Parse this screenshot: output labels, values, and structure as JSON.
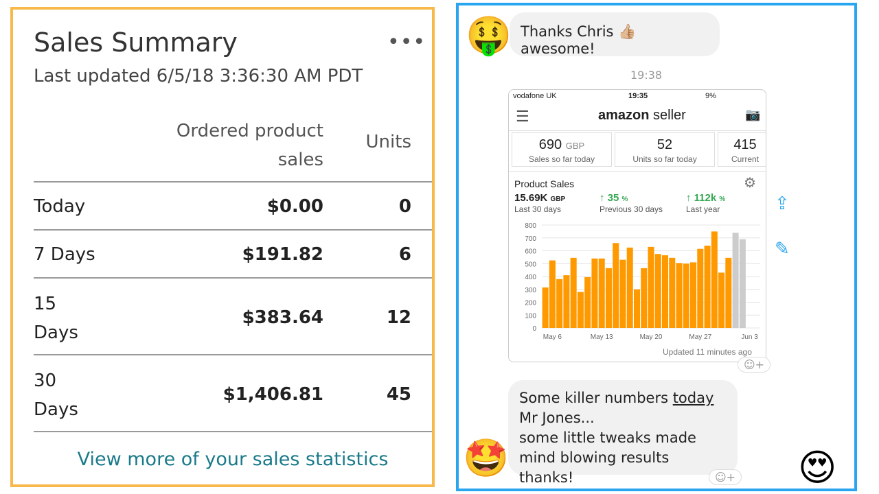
{
  "sales_summary": {
    "title": "Sales Summary",
    "more": "•••",
    "last_updated": "Last updated 6/5/18 3:36:30 AM PDT",
    "col_sales": "Ordered product sales",
    "col_units": "Units",
    "rows": [
      {
        "label": "Today",
        "sales": "$0.00",
        "units": "0"
      },
      {
        "label": "7 Days",
        "sales": "$191.82",
        "units": "6"
      },
      {
        "label": "15 Days",
        "sales": "$383.64",
        "units": "12"
      },
      {
        "label": "30 Days",
        "sales": "$1,406.81",
        "units": "45"
      }
    ],
    "link": "View more of your sales statistics"
  },
  "chat": {
    "message1": "Thanks Chris 👍🏼 awesome!",
    "time": "19:38",
    "message2_a": "Some killer numbers ",
    "message2_u": "today",
    "message2_b": " Mr Jones...",
    "message2_c": "some little tweaks made mind blowing results thanks!",
    "react": "☺+",
    "emoji_sender1": "🤑",
    "emoji_sender2": "🤩",
    "emoji_reader": "😍"
  },
  "phone": {
    "carrier": "vodafone UK",
    "clock": "19:35",
    "battery": "9%",
    "brand_a": "amazon",
    "brand_b": " seller",
    "tiles": [
      {
        "value": "690",
        "unit": "GBP",
        "label": "Sales so far today"
      },
      {
        "value": "52",
        "unit": "",
        "label": "Units so far today"
      },
      {
        "value": "415",
        "unit": "",
        "label": "Current"
      }
    ],
    "product_sales_title": "Product Sales",
    "metrics": [
      {
        "value": "15.69K",
        "unit": "GBP",
        "label": "Last 30 days"
      },
      {
        "value": "↑ 35",
        "unit": "%",
        "label": "Previous 30 days"
      },
      {
        "value": "↑ 112k",
        "unit": "%",
        "label": "Last year"
      }
    ],
    "updated": "Updated 11 minutes ago"
  },
  "chart_data": {
    "type": "bar",
    "categories": [
      "May 5",
      "May 6",
      "May 7",
      "May 8",
      "May 9",
      "May 10",
      "May 11",
      "May 12",
      "May 13",
      "May 14",
      "May 15",
      "May 16",
      "May 17",
      "May 18",
      "May 19",
      "May 20",
      "May 21",
      "May 22",
      "May 23",
      "May 24",
      "May 25",
      "May 26",
      "May 27",
      "May 28",
      "May 29",
      "May 30",
      "May 31",
      "Jun 1",
      "Jun 2",
      "Jun 3",
      "Jun 4"
    ],
    "values": [
      315,
      525,
      380,
      410,
      545,
      280,
      395,
      540,
      540,
      465,
      660,
      530,
      625,
      300,
      465,
      630,
      575,
      565,
      545,
      505,
      500,
      510,
      615,
      640,
      750,
      430,
      545,
      0,
      0,
      0,
      0
    ],
    "partial_values": [
      0,
      0,
      0,
      0,
      0,
      0,
      0,
      0,
      0,
      0,
      0,
      0,
      0,
      0,
      0,
      0,
      0,
      0,
      0,
      0,
      0,
      0,
      0,
      0,
      0,
      0,
      0,
      740,
      690,
      0,
      0
    ],
    "xticks": [
      "May 6",
      "May 13",
      "May 20",
      "May 27",
      "Jun 3"
    ],
    "yticks": [
      0,
      100,
      200,
      300,
      400,
      500,
      600,
      700,
      800
    ],
    "ylim": [
      0,
      800
    ],
    "colors": {
      "bar": "#ff9900",
      "partial": "#cccccc"
    }
  }
}
